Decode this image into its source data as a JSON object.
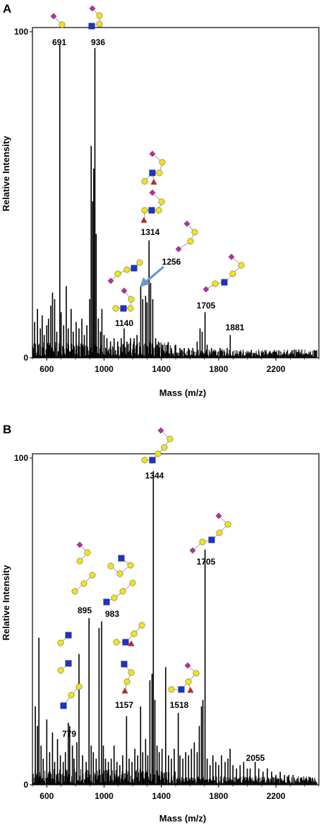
{
  "colors": {
    "spectrum": "#000000",
    "mannose": "#f2e31b",
    "galactose": "#f2e31b",
    "glcnac": "#1a33cc",
    "sialic": "#b3309e",
    "fucose": "#d41f1f",
    "linkage": "#8c8c8c",
    "arrow": "#6a98c9"
  },
  "chart_data": [
    {
      "type": "bar",
      "panel_label": "A",
      "xlabel": "Mass (m/z)",
      "ylabel": "Relative Intensity",
      "xlim": [
        500,
        2500
      ],
      "ylim": [
        0,
        100
      ],
      "x_ticks": [
        600,
        1000,
        1400,
        1800,
        2200
      ],
      "y_ticks": [
        0,
        100
      ],
      "peaks": [
        {
          "x": 515,
          "y": 11
        },
        {
          "x": 535,
          "y": 15
        },
        {
          "x": 555,
          "y": 9
        },
        {
          "x": 568,
          "y": 13
        },
        {
          "x": 582,
          "y": 7
        },
        {
          "x": 600,
          "y": 10
        },
        {
          "x": 612,
          "y": 12
        },
        {
          "x": 628,
          "y": 16
        },
        {
          "x": 640,
          "y": 20
        },
        {
          "x": 655,
          "y": 18
        },
        {
          "x": 670,
          "y": 8
        },
        {
          "x": 691,
          "y": 96
        },
        {
          "x": 700,
          "y": 14
        },
        {
          "x": 718,
          "y": 10
        },
        {
          "x": 736,
          "y": 22
        },
        {
          "x": 750,
          "y": 9
        },
        {
          "x": 770,
          "y": 15
        },
        {
          "x": 785,
          "y": 8
        },
        {
          "x": 805,
          "y": 11
        },
        {
          "x": 825,
          "y": 9
        },
        {
          "x": 845,
          "y": 12
        },
        {
          "x": 862,
          "y": 7
        },
        {
          "x": 880,
          "y": 10
        },
        {
          "x": 900,
          "y": 18
        },
        {
          "x": 910,
          "y": 65
        },
        {
          "x": 920,
          "y": 48
        },
        {
          "x": 928,
          "y": 58
        },
        {
          "x": 936,
          "y": 95
        },
        {
          "x": 945,
          "y": 38
        },
        {
          "x": 960,
          "y": 12
        },
        {
          "x": 975,
          "y": 8
        },
        {
          "x": 985,
          "y": 15
        },
        {
          "x": 1000,
          "y": 7
        },
        {
          "x": 1020,
          "y": 6
        },
        {
          "x": 1045,
          "y": 5
        },
        {
          "x": 1070,
          "y": 6
        },
        {
          "x": 1095,
          "y": 5
        },
        {
          "x": 1120,
          "y": 6
        },
        {
          "x": 1140,
          "y": 9
        },
        {
          "x": 1160,
          "y": 5
        },
        {
          "x": 1185,
          "y": 6
        },
        {
          "x": 1210,
          "y": 6
        },
        {
          "x": 1230,
          "y": 7
        },
        {
          "x": 1256,
          "y": 22
        },
        {
          "x": 1270,
          "y": 18
        },
        {
          "x": 1290,
          "y": 19
        },
        {
          "x": 1300,
          "y": 17
        },
        {
          "x": 1314,
          "y": 36
        },
        {
          "x": 1325,
          "y": 23
        },
        {
          "x": 1340,
          "y": 18
        },
        {
          "x": 1360,
          "y": 6
        },
        {
          "x": 1380,
          "y": 5
        },
        {
          "x": 1410,
          "y": 4
        },
        {
          "x": 1440,
          "y": 4
        },
        {
          "x": 1470,
          "y": 3
        },
        {
          "x": 1500,
          "y": 4
        },
        {
          "x": 1530,
          "y": 3
        },
        {
          "x": 1560,
          "y": 3
        },
        {
          "x": 1590,
          "y": 3
        },
        {
          "x": 1620,
          "y": 3
        },
        {
          "x": 1650,
          "y": 5
        },
        {
          "x": 1670,
          "y": 9
        },
        {
          "x": 1685,
          "y": 8
        },
        {
          "x": 1705,
          "y": 14
        },
        {
          "x": 1720,
          "y": 4
        },
        {
          "x": 1750,
          "y": 3
        },
        {
          "x": 1780,
          "y": 2
        },
        {
          "x": 1810,
          "y": 3
        },
        {
          "x": 1840,
          "y": 2
        },
        {
          "x": 1860,
          "y": 3
        },
        {
          "x": 1881,
          "y": 7
        },
        {
          "x": 1900,
          "y": 2
        },
        {
          "x": 1950,
          "y": 2
        },
        {
          "x": 2000,
          "y": 2
        },
        {
          "x": 2050,
          "y": 1.5
        },
        {
          "x": 2100,
          "y": 1.5
        },
        {
          "x": 2150,
          "y": 1.5
        },
        {
          "x": 2200,
          "y": 1.5
        },
        {
          "x": 2250,
          "y": 1
        },
        {
          "x": 2300,
          "y": 1
        },
        {
          "x": 2350,
          "y": 1
        },
        {
          "x": 2400,
          "y": 1
        },
        {
          "x": 2450,
          "y": 1
        }
      ],
      "annotations": [
        {
          "label": "691",
          "x": 691,
          "y": 96,
          "glycan": "sia-gal"
        },
        {
          "label": "936",
          "x": 936,
          "y": 95,
          "glycan": "sia-gal-glcnac"
        },
        {
          "label": "1314",
          "x": 1314,
          "y": 36,
          "glycan": "two-fucosylated"
        },
        {
          "label": "1256",
          "x": 1256,
          "y": 22,
          "glycan": "arrow"
        },
        {
          "label": "1140",
          "x": 1140,
          "y": 9,
          "glycan": "two-branched"
        },
        {
          "label": "1705",
          "x": 1705,
          "y": 14,
          "glycan": "long-sialyl"
        },
        {
          "label": "1881",
          "x": 1881,
          "y": 7,
          "glycan": "none"
        }
      ]
    },
    {
      "type": "bar",
      "panel_label": "B",
      "xlabel": "Mass (m/z)",
      "ylabel": "Relative Intensity",
      "xlim": [
        500,
        2500
      ],
      "ylim": [
        0,
        100
      ],
      "x_ticks": [
        600,
        1000,
        1400,
        1800,
        2200
      ],
      "y_ticks": [
        0,
        100
      ],
      "peaks": [
        {
          "x": 520,
          "y": 24
        },
        {
          "x": 535,
          "y": 18
        },
        {
          "x": 545,
          "y": 45
        },
        {
          "x": 560,
          "y": 12
        },
        {
          "x": 575,
          "y": 8
        },
        {
          "x": 600,
          "y": 20
        },
        {
          "x": 620,
          "y": 10
        },
        {
          "x": 640,
          "y": 16
        },
        {
          "x": 655,
          "y": 7
        },
        {
          "x": 675,
          "y": 14
        },
        {
          "x": 695,
          "y": 9
        },
        {
          "x": 715,
          "y": 7
        },
        {
          "x": 730,
          "y": 10
        },
        {
          "x": 750,
          "y": 19
        },
        {
          "x": 760,
          "y": 18
        },
        {
          "x": 779,
          "y": 12
        },
        {
          "x": 790,
          "y": 8
        },
        {
          "x": 810,
          "y": 13
        },
        {
          "x": 825,
          "y": 40
        },
        {
          "x": 850,
          "y": 9
        },
        {
          "x": 875,
          "y": 7
        },
        {
          "x": 895,
          "y": 51
        },
        {
          "x": 910,
          "y": 12
        },
        {
          "x": 925,
          "y": 10
        },
        {
          "x": 945,
          "y": 8
        },
        {
          "x": 965,
          "y": 48
        },
        {
          "x": 983,
          "y": 50
        },
        {
          "x": 995,
          "y": 12
        },
        {
          "x": 1010,
          "y": 8
        },
        {
          "x": 1030,
          "y": 7
        },
        {
          "x": 1050,
          "y": 8
        },
        {
          "x": 1070,
          "y": 12
        },
        {
          "x": 1090,
          "y": 7
        },
        {
          "x": 1110,
          "y": 6
        },
        {
          "x": 1130,
          "y": 9
        },
        {
          "x": 1157,
          "y": 21
        },
        {
          "x": 1175,
          "y": 8
        },
        {
          "x": 1195,
          "y": 7
        },
        {
          "x": 1215,
          "y": 11
        },
        {
          "x": 1235,
          "y": 9
        },
        {
          "x": 1255,
          "y": 24
        },
        {
          "x": 1270,
          "y": 10
        },
        {
          "x": 1290,
          "y": 14
        },
        {
          "x": 1305,
          "y": 9
        },
        {
          "x": 1320,
          "y": 32
        },
        {
          "x": 1335,
          "y": 34
        },
        {
          "x": 1344,
          "y": 96
        },
        {
          "x": 1355,
          "y": 26
        },
        {
          "x": 1370,
          "y": 12
        },
        {
          "x": 1385,
          "y": 10
        },
        {
          "x": 1405,
          "y": 11
        },
        {
          "x": 1430,
          "y": 36
        },
        {
          "x": 1450,
          "y": 9
        },
        {
          "x": 1470,
          "y": 8
        },
        {
          "x": 1490,
          "y": 11
        },
        {
          "x": 1518,
          "y": 22
        },
        {
          "x": 1530,
          "y": 9
        },
        {
          "x": 1550,
          "y": 8
        },
        {
          "x": 1570,
          "y": 10
        },
        {
          "x": 1590,
          "y": 9
        },
        {
          "x": 1610,
          "y": 11
        },
        {
          "x": 1630,
          "y": 13
        },
        {
          "x": 1650,
          "y": 10
        },
        {
          "x": 1665,
          "y": 18
        },
        {
          "x": 1680,
          "y": 24
        },
        {
          "x": 1690,
          "y": 26
        },
        {
          "x": 1705,
          "y": 72
        },
        {
          "x": 1720,
          "y": 8
        },
        {
          "x": 1740,
          "y": 6
        },
        {
          "x": 1760,
          "y": 9
        },
        {
          "x": 1780,
          "y": 7
        },
        {
          "x": 1800,
          "y": 6
        },
        {
          "x": 1820,
          "y": 9
        },
        {
          "x": 1845,
          "y": 7
        },
        {
          "x": 1865,
          "y": 8
        },
        {
          "x": 1880,
          "y": 11
        },
        {
          "x": 1900,
          "y": 6
        },
        {
          "x": 1925,
          "y": 5
        },
        {
          "x": 1950,
          "y": 6
        },
        {
          "x": 1975,
          "y": 7
        },
        {
          "x": 2000,
          "y": 5
        },
        {
          "x": 2020,
          "y": 5
        },
        {
          "x": 2055,
          "y": 7
        },
        {
          "x": 2080,
          "y": 5
        },
        {
          "x": 2110,
          "y": 4
        },
        {
          "x": 2140,
          "y": 5
        },
        {
          "x": 2170,
          "y": 4
        },
        {
          "x": 2200,
          "y": 3
        },
        {
          "x": 2230,
          "y": 4
        },
        {
          "x": 2260,
          "y": 3
        },
        {
          "x": 2290,
          "y": 3
        },
        {
          "x": 2320,
          "y": 3
        },
        {
          "x": 2350,
          "y": 2
        },
        {
          "x": 2380,
          "y": 2
        },
        {
          "x": 2410,
          "y": 2
        },
        {
          "x": 2440,
          "y": 2
        }
      ],
      "annotations": [
        {
          "label": "1344",
          "x": 1344,
          "y": 96,
          "glycan": "sialyl-chain"
        },
        {
          "label": "1705",
          "x": 1705,
          "y": 72,
          "glycan": "long-sialyl"
        },
        {
          "label": "895",
          "x": 895,
          "y": 51,
          "glycan": "two-sialyl-small"
        },
        {
          "label": "983",
          "x": 983,
          "y": 50,
          "glycan": "two-glcnac"
        },
        {
          "label": "779",
          "x": 779,
          "y": 12,
          "glycan": "three-small"
        },
        {
          "label": "1157",
          "x": 1157,
          "y": 21,
          "glycan": "fucosylated"
        },
        {
          "label": "1518",
          "x": 1518,
          "y": 22,
          "glycan": "branched-fuc"
        },
        {
          "label": "2055",
          "x": 2055,
          "y": 7,
          "glycan": "none"
        }
      ]
    }
  ]
}
